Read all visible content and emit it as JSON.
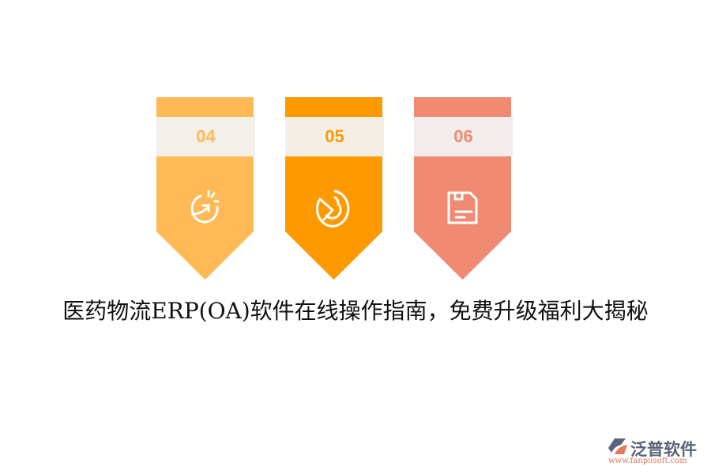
{
  "cards": [
    {
      "number": "04",
      "icon": "speed-arrow-icon",
      "color": "#FFB957",
      "band_color": "#F3EFE9"
    },
    {
      "number": "05",
      "icon": "pie-chart-icon",
      "color": "#FF9900",
      "band_color": "#F3EEE6"
    },
    {
      "number": "06",
      "icon": "save-document-icon",
      "color": "#F08A72",
      "band_color": "#F2ECEC"
    }
  ],
  "title": "医药物流ERP(OA)软件在线操作指南，免费升级福利大揭秘",
  "logo": {
    "name": "泛普软件",
    "url": "www.fanpusoft.com"
  }
}
